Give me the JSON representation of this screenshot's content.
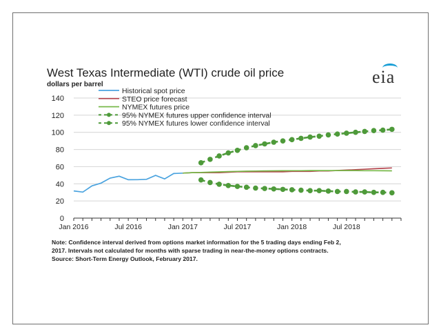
{
  "chart_data": {
    "type": "line",
    "title": "West Texas Intermediate (WTI) crude oil price",
    "ylabel": "dollars per barrel",
    "ylim": [
      0,
      140
    ],
    "yticks": [
      0,
      20,
      40,
      60,
      80,
      100,
      120,
      140
    ],
    "x_range": [
      "2016-01",
      "2018-12"
    ],
    "xtick_labels": [
      "Jan 2016",
      "Jul 2016",
      "Jan 2017",
      "Jul 2017",
      "Jan 2018",
      "Jul 2018"
    ],
    "legend_position": "top-left",
    "series": [
      {
        "name": "Historical spot price",
        "color": "#4aa3df",
        "style": "solid",
        "x": [
          "2016-01",
          "2016-02",
          "2016-03",
          "2016-04",
          "2016-05",
          "2016-06",
          "2016-07",
          "2016-08",
          "2016-09",
          "2016-10",
          "2016-11",
          "2016-12",
          "2017-01"
        ],
        "values": [
          31.7,
          30.3,
          37.6,
          40.8,
          46.7,
          48.8,
          44.7,
          44.8,
          45.2,
          49.8,
          45.7,
          52.0,
          52.5
        ]
      },
      {
        "name": "STEO price forecast",
        "color": "#b5464f",
        "style": "solid",
        "x": [
          "2017-01",
          "2017-02",
          "2017-03",
          "2017-04",
          "2017-05",
          "2017-06",
          "2017-07",
          "2017-08",
          "2017-09",
          "2017-10",
          "2017-11",
          "2017-12",
          "2018-01",
          "2018-02",
          "2018-03",
          "2018-04",
          "2018-05",
          "2018-06",
          "2018-07",
          "2018-08",
          "2018-09",
          "2018-10",
          "2018-11",
          "2018-12"
        ],
        "values": [
          52.5,
          53.0,
          53.0,
          53.0,
          53.0,
          53.5,
          54.0,
          54.0,
          54.0,
          54.0,
          54.0,
          54.0,
          54.5,
          54.5,
          54.5,
          55.0,
          55.0,
          55.5,
          56.0,
          56.5,
          57.0,
          57.5,
          58.0,
          58.5
        ]
      },
      {
        "name": "NYMEX futures price",
        "color": "#78b84a",
        "style": "solid",
        "x": [
          "2017-01",
          "2017-02",
          "2017-03",
          "2017-04",
          "2017-05",
          "2017-06",
          "2017-07",
          "2017-08",
          "2017-09",
          "2017-10",
          "2017-11",
          "2017-12",
          "2018-01",
          "2018-02",
          "2018-03",
          "2018-04",
          "2018-05",
          "2018-06",
          "2018-07",
          "2018-08",
          "2018-09",
          "2018-10",
          "2018-11",
          "2018-12"
        ],
        "values": [
          52.5,
          53.0,
          53.2,
          53.6,
          53.9,
          54.2,
          54.5,
          54.7,
          54.9,
          55.0,
          55.1,
          55.2,
          55.3,
          55.3,
          55.4,
          55.4,
          55.4,
          55.4,
          55.4,
          55.4,
          55.3,
          55.3,
          55.2,
          55.1
        ]
      },
      {
        "name": "95% NYMEX futures upper confidence interval",
        "color": "#4e9a3a",
        "style": "dashed-dotted",
        "x": [
          "2017-03",
          "2017-04",
          "2017-05",
          "2017-06",
          "2017-07",
          "2017-08",
          "2017-09",
          "2017-10",
          "2017-11",
          "2017-12",
          "2018-01",
          "2018-02",
          "2018-03",
          "2018-04",
          "2018-05",
          "2018-06",
          "2018-07",
          "2018-08",
          "2018-09",
          "2018-10",
          "2018-11",
          "2018-12"
        ],
        "values": [
          64.5,
          68.5,
          72.5,
          76.0,
          79.0,
          82.0,
          84.5,
          86.5,
          88.5,
          90.0,
          91.5,
          93.0,
          94.5,
          95.5,
          97.0,
          98.0,
          99.0,
          100.0,
          101.0,
          102.0,
          102.5,
          103.5
        ]
      },
      {
        "name": "95% NYMEX futures lower confidence interval",
        "color": "#4e9a3a",
        "style": "dashed-dotted",
        "x": [
          "2017-03",
          "2017-04",
          "2017-05",
          "2017-06",
          "2017-07",
          "2017-08",
          "2017-09",
          "2017-10",
          "2017-11",
          "2017-12",
          "2018-01",
          "2018-02",
          "2018-03",
          "2018-04",
          "2018-05",
          "2018-06",
          "2018-07",
          "2018-08",
          "2018-09",
          "2018-10",
          "2018-11",
          "2018-12"
        ],
        "values": [
          44.5,
          41.5,
          39.5,
          38.0,
          37.0,
          36.0,
          35.0,
          34.5,
          34.0,
          33.5,
          33.0,
          32.5,
          32.0,
          32.0,
          31.5,
          31.0,
          31.0,
          30.5,
          30.5,
          30.0,
          30.0,
          29.5
        ]
      }
    ]
  },
  "logo_text": "eia",
  "note_lines": [
    "Note: Confidence interval derived from options market information for the 5 trading days ending Feb 2,",
    "2017. Intervals not calculated for months with sparse trading in near-the-money options contracts.",
    "Source: Short-Term Energy Outlook, February 2017."
  ]
}
